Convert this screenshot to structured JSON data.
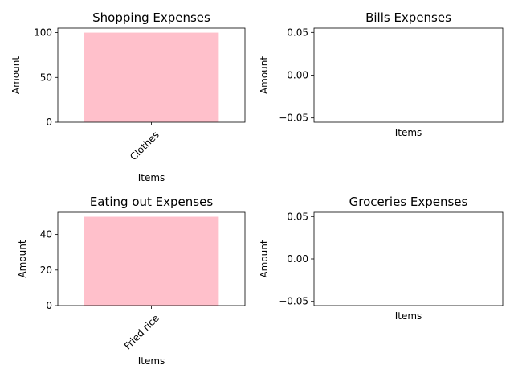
{
  "chart_data": [
    {
      "type": "bar",
      "title": "Shopping Expenses",
      "xlabel": "Items",
      "ylabel": "Amount",
      "categories": [
        "Clothes"
      ],
      "values": [
        100
      ],
      "ylim": [
        0,
        105
      ],
      "yticks": [
        0,
        50,
        100
      ],
      "ytick_labels": [
        "0",
        "50",
        "100"
      ],
      "xtick_rotation": 45,
      "bar_color": "#ffc0cb"
    },
    {
      "type": "bar",
      "title": "Bills Expenses",
      "xlabel": "Items",
      "ylabel": "Amount",
      "categories": [],
      "values": [],
      "ylim": [
        -0.055,
        0.055
      ],
      "yticks": [
        -0.05,
        0,
        0.05
      ],
      "ytick_labels": [
        "−0.05",
        "0.00",
        "0.05"
      ],
      "bar_color": "#ffc0cb"
    },
    {
      "type": "bar",
      "title": "Eating out Expenses",
      "xlabel": "Items",
      "ylabel": "Amount",
      "categories": [
        "Fried rice"
      ],
      "values": [
        50
      ],
      "ylim": [
        0,
        52.5
      ],
      "yticks": [
        0,
        20,
        40
      ],
      "ytick_labels": [
        "0",
        "20",
        "40"
      ],
      "xtick_rotation": 45,
      "bar_color": "#ffc0cb"
    },
    {
      "type": "bar",
      "title": "Groceries Expenses",
      "xlabel": "Items",
      "ylabel": "Amount",
      "categories": [],
      "values": [],
      "ylim": [
        -0.055,
        0.055
      ],
      "yticks": [
        -0.05,
        0,
        0.05
      ],
      "ytick_labels": [
        "−0.05",
        "0.00",
        "0.05"
      ],
      "bar_color": "#ffc0cb"
    }
  ]
}
